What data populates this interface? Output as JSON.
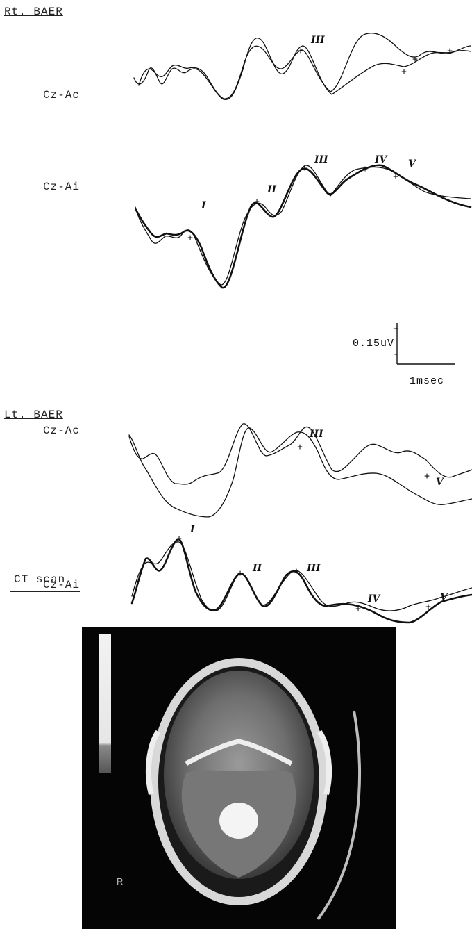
{
  "right_baer": {
    "title": "Rt. BAER",
    "cz_ac": {
      "label": "Cz-Ac",
      "peaks": [
        "III"
      ]
    },
    "cz_ai": {
      "label": "Cz-Ai",
      "peaks": [
        "I",
        "II",
        "III",
        "IV",
        "V"
      ]
    }
  },
  "scale_bar": {
    "amplitude": "0.15uV",
    "plus": "+",
    "minus": "-",
    "time": "1msec"
  },
  "left_baer": {
    "title": "Lt. BAER",
    "cz_ac": {
      "label": "Cz-Ac",
      "peaks": [
        "III",
        "V"
      ]
    },
    "cz_ai": {
      "label": "Cz-Ai",
      "peaks": [
        "I",
        "II",
        "III",
        "IV",
        "V"
      ]
    }
  },
  "ct": {
    "title": "CT scan",
    "side_marker": "R"
  },
  "colors": {
    "ink": "#111111",
    "ct_background": "#050505"
  }
}
